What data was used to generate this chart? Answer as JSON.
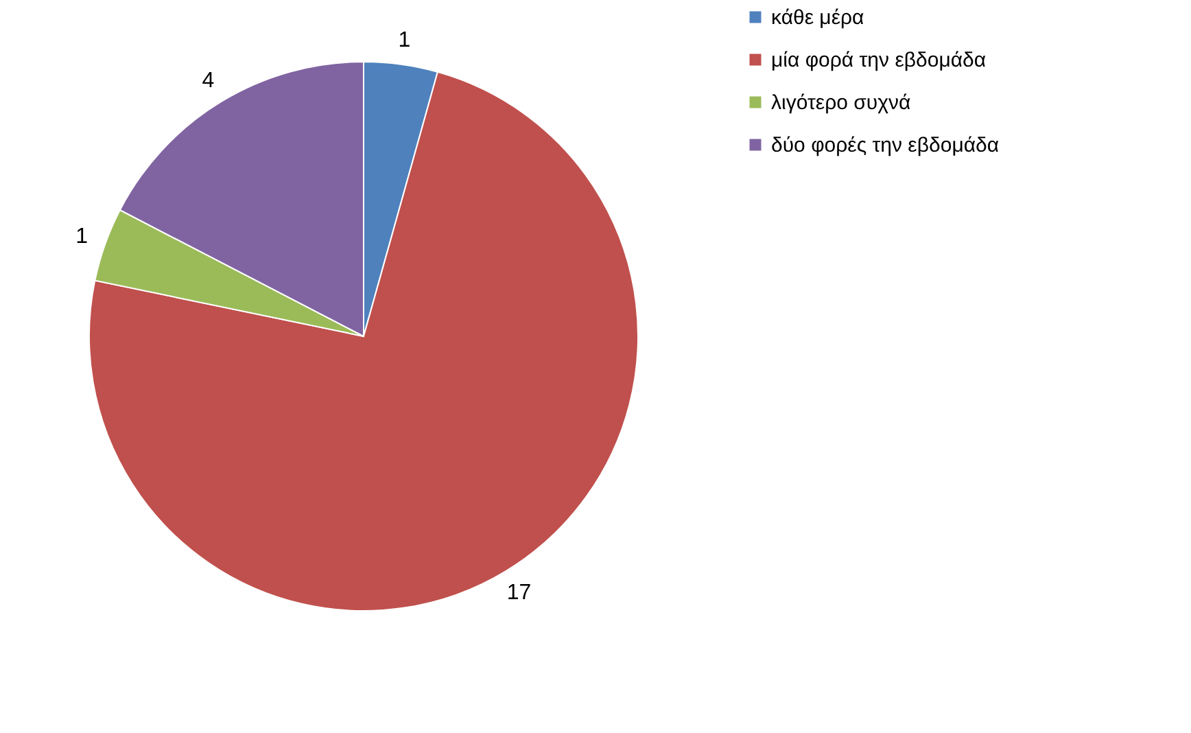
{
  "chart_data": {
    "type": "pie",
    "categories": [
      "κάθε μέρα",
      "μία φορά την εβδομάδα",
      "λιγότερο συχνά",
      "δύο φορές την εβδομάδα"
    ],
    "values": [
      1,
      17,
      1,
      4
    ],
    "colors": [
      "#4f81bd",
      "#c0504d",
      "#9bbb59",
      "#8064a2"
    ],
    "data_labels": true,
    "legend": "right"
  }
}
